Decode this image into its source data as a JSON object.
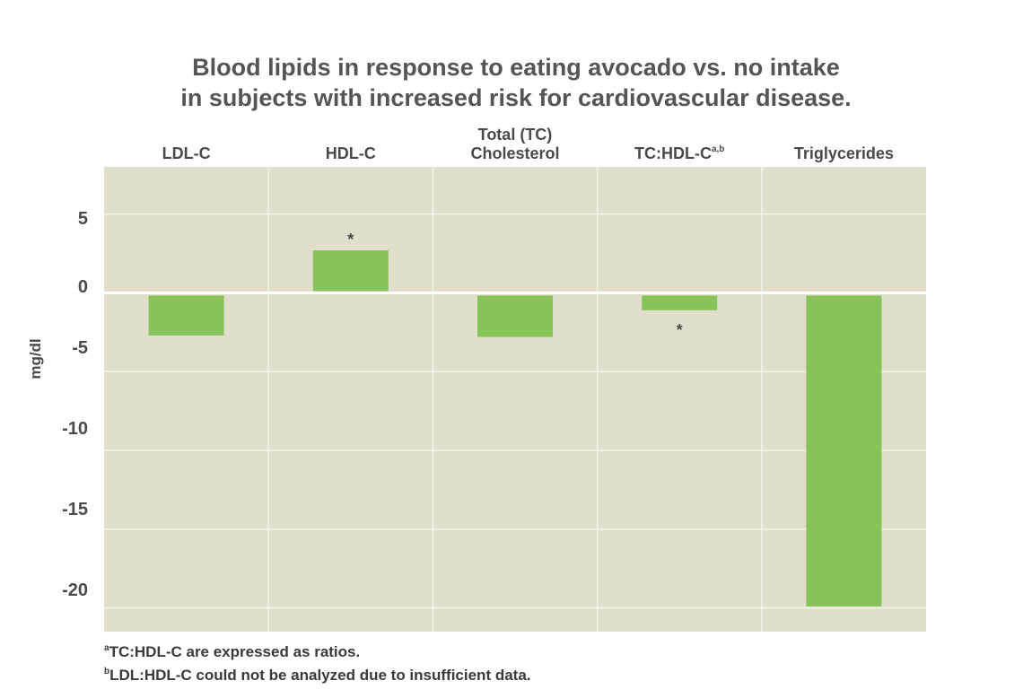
{
  "chart_data": {
    "type": "bar",
    "title_line1": "Blood lipids in response to eating avocado vs. no intake",
    "title_line2": "in subjects with increased risk for cardiovascular disease.",
    "categories": [
      {
        "label": "LDL-C",
        "sup": ""
      },
      {
        "label": "HDL-C",
        "sup": ""
      },
      {
        "label": "Total (TC) Cholesterol",
        "sup": ""
      },
      {
        "label": "TC:HDL-C",
        "sup": "a,b"
      },
      {
        "label": "Triglycerides",
        "sup": ""
      }
    ],
    "values": [
      -2.7,
      2.7,
      -2.8,
      -1.1,
      -19.9
    ],
    "significance": [
      "",
      "*",
      "",
      "*",
      ""
    ],
    "ylabel": "mg/dl",
    "yticks": [
      5,
      0,
      -5,
      -10,
      -15,
      -20
    ],
    "ylim": [
      -21.5,
      8
    ],
    "grid": true,
    "bar_color": "#86c45a",
    "plot_background": "#e1dfcc"
  },
  "footnotes": [
    {
      "sup": "a",
      "text": "TC:HDL-C are expressed as ratios."
    },
    {
      "sup": "b",
      "text": "LDL:HDL-C could not be analyzed due to insufficient data."
    }
  ]
}
